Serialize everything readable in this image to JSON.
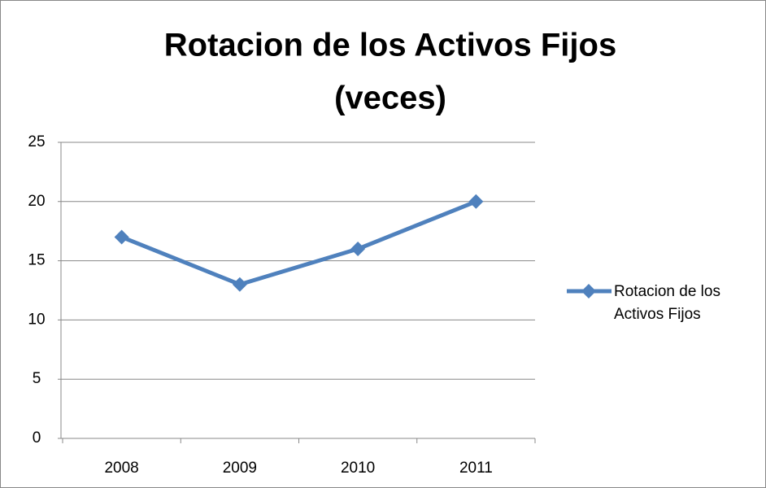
{
  "chart_data": {
    "type": "line",
    "title": [
      "Rotacion de los Activos Fijos",
      "(veces)"
    ],
    "categories": [
      "2008",
      "2009",
      "2010",
      "2011"
    ],
    "series": [
      {
        "name": "Rotacion de los Activos Fijos",
        "color": "#4f81bd",
        "values": [
          17,
          13,
          16,
          20
        ]
      }
    ],
    "ylim": [
      0,
      25
    ],
    "yticks": [
      0,
      5,
      10,
      15,
      20,
      25
    ],
    "grid": true,
    "legend": "right"
  }
}
